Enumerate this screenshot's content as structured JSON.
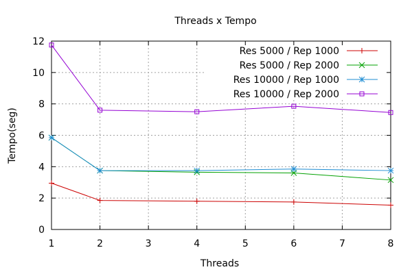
{
  "chart_data": {
    "type": "line",
    "title": "Threads x Tempo",
    "xlabel": "Threads",
    "ylabel": "Tempo(seg)",
    "xlim": [
      1,
      8
    ],
    "ylim": [
      0,
      12
    ],
    "xticks": [
      1,
      2,
      3,
      4,
      5,
      6,
      7,
      8
    ],
    "yticks": [
      0,
      2,
      4,
      6,
      8,
      10,
      12
    ],
    "grid": true,
    "legend_position": "top-right",
    "series": [
      {
        "name": "Res 5000 / Rep 1000",
        "color": "#cc0000",
        "marker": "plus",
        "x": [
          1,
          2,
          4,
          6,
          8
        ],
        "y": [
          2.95,
          1.85,
          1.8,
          1.75,
          1.55
        ]
      },
      {
        "name": "Res 5000 / Rep 2000",
        "color": "#00a000",
        "marker": "cross",
        "x": [
          1,
          2,
          4,
          6,
          8
        ],
        "y": [
          5.85,
          3.75,
          3.65,
          3.6,
          3.15
        ]
      },
      {
        "name": "Res 10000 / Rep 1000",
        "color": "#1e8cd2",
        "marker": "star",
        "x": [
          1,
          2,
          4,
          6,
          8
        ],
        "y": [
          5.85,
          3.75,
          3.75,
          3.85,
          3.75
        ]
      },
      {
        "name": "Res 10000 / Rep 2000",
        "color": "#9400d3",
        "marker": "square",
        "x": [
          1,
          2,
          4,
          6,
          8
        ],
        "y": [
          11.75,
          7.6,
          7.5,
          7.85,
          7.45
        ]
      }
    ]
  }
}
